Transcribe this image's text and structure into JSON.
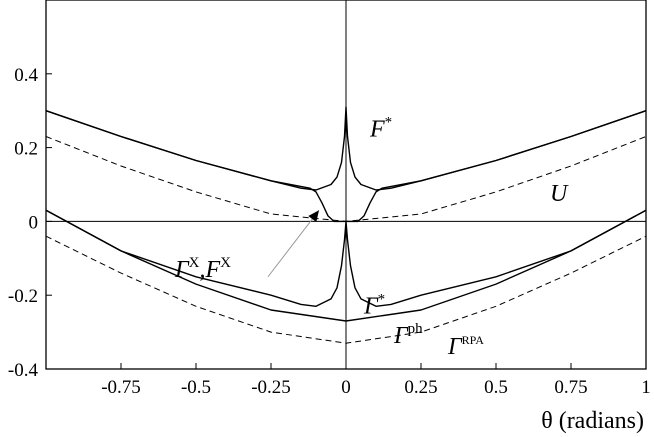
{
  "chart_data": {
    "type": "line",
    "title": "",
    "xlabel": "θ (radians)",
    "ylabel": "",
    "xlim": [
      -1.0,
      1.0
    ],
    "ylim": [
      -0.4,
      0.6
    ],
    "grid": false,
    "x_ticks": [
      {
        "value": -0.75,
        "label": "-0.75"
      },
      {
        "value": -0.5,
        "label": "-0.5"
      },
      {
        "value": -0.25,
        "label": "-0.25"
      },
      {
        "value": 0,
        "label": "0"
      },
      {
        "value": 0.25,
        "label": "0.25"
      },
      {
        "value": 0.5,
        "label": "0.5"
      },
      {
        "value": 0.75,
        "label": "0.75"
      },
      {
        "value": 1,
        "label": "1"
      }
    ],
    "y_ticks": [
      {
        "value": 0.4,
        "label": "0.4"
      },
      {
        "value": 0.2,
        "label": "0.2"
      },
      {
        "value": 0,
        "label": "0"
      },
      {
        "value": -0.2,
        "label": "-0.2"
      },
      {
        "value": -0.4,
        "label": "-0.4"
      }
    ],
    "series": [
      {
        "name": "F*",
        "style": "solid",
        "x": [
          -1.0,
          -0.75,
          -0.5,
          -0.25,
          -0.15,
          -0.1,
          -0.05,
          -0.03,
          -0.015,
          -0.005,
          0,
          0.005,
          0.015,
          0.03,
          0.05,
          0.1,
          0.15,
          0.25,
          0.5,
          0.75,
          1.0
        ],
        "y": [
          0.3,
          0.23,
          0.165,
          0.11,
          0.09,
          0.085,
          0.1,
          0.12,
          0.16,
          0.23,
          0.31,
          0.23,
          0.16,
          0.12,
          0.1,
          0.085,
          0.09,
          0.11,
          0.165,
          0.23,
          0.3
        ]
      },
      {
        "name": "Γ^X, F^X",
        "style": "solid",
        "x": [
          -1.0,
          -0.75,
          -0.5,
          -0.25,
          -0.12,
          -0.1,
          -0.08,
          -0.06,
          -0.04,
          0,
          0.04,
          0.06,
          0.08,
          0.1,
          0.12,
          0.25,
          0.5,
          0.75,
          1.0
        ],
        "y": [
          0.3,
          0.23,
          0.165,
          0.11,
          0.09,
          0.08,
          0.05,
          0.015,
          0.0,
          0.0,
          0.0,
          0.015,
          0.05,
          0.08,
          0.09,
          0.11,
          0.165,
          0.23,
          0.3
        ]
      },
      {
        "name": "U",
        "style": "dashed",
        "x": [
          -1.0,
          -0.75,
          -0.5,
          -0.25,
          0,
          0.25,
          0.5,
          0.75,
          1.0
        ],
        "y": [
          0.23,
          0.15,
          0.08,
          0.02,
          0.0,
          0.02,
          0.08,
          0.15,
          0.23
        ]
      },
      {
        "name": "Γ*",
        "style": "solid",
        "x": [
          -1.0,
          -0.75,
          -0.5,
          -0.25,
          -0.15,
          -0.1,
          -0.05,
          -0.03,
          -0.015,
          -0.005,
          0,
          0.005,
          0.015,
          0.03,
          0.05,
          0.1,
          0.15,
          0.25,
          0.5,
          0.75,
          1.0
        ],
        "y": [
          0.03,
          -0.08,
          -0.15,
          -0.2,
          -0.225,
          -0.23,
          -0.21,
          -0.18,
          -0.12,
          -0.05,
          0.0,
          -0.05,
          -0.12,
          -0.18,
          -0.21,
          -0.23,
          -0.225,
          -0.2,
          -0.15,
          -0.08,
          0.03
        ]
      },
      {
        "name": "Γ^ph",
        "style": "solid",
        "x": [
          -1.0,
          -0.75,
          -0.5,
          -0.25,
          0,
          0.25,
          0.5,
          0.75,
          1.0
        ],
        "y": [
          0.03,
          -0.08,
          -0.17,
          -0.24,
          -0.27,
          -0.24,
          -0.17,
          -0.08,
          0.03
        ]
      },
      {
        "name": "Γ^RPA",
        "style": "dashed",
        "x": [
          -1.0,
          -0.75,
          -0.5,
          -0.25,
          0,
          0.25,
          0.5,
          0.75,
          1.0
        ],
        "y": [
          -0.04,
          -0.14,
          -0.23,
          -0.3,
          -0.33,
          -0.3,
          -0.23,
          -0.14,
          -0.04
        ]
      }
    ],
    "annotations": [
      {
        "id": "f-star",
        "main": "F",
        "sup": "*",
        "x": 0.08,
        "y": 0.23
      },
      {
        "id": "u",
        "main": "U",
        "sup": "",
        "x": 0.68,
        "y": 0.055
      },
      {
        "id": "gamma-x-fx",
        "main": "Γ",
        "sup": "X",
        "main2": ",F",
        "sup2": "X",
        "x": -0.57,
        "y": -0.15
      },
      {
        "id": "gamma-star",
        "main": "Γ",
        "sup": "*",
        "x": 0.06,
        "y": -0.25
      },
      {
        "id": "gamma-ph",
        "main": "Γ",
        "sup": "ph",
        "x": 0.16,
        "y": -0.33
      },
      {
        "id": "gamma-rpa",
        "main": "Γ",
        "sup": "RPA",
        "x": 0.34,
        "y": -0.36
      }
    ],
    "arrow": {
      "from_x": -0.26,
      "from_y": -0.15,
      "to_x": -0.09,
      "to_y": 0.03
    }
  }
}
